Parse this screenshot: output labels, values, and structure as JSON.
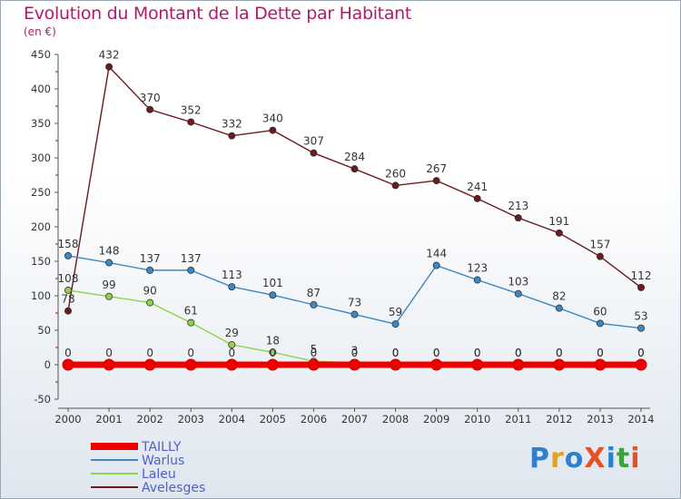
{
  "title": "Evolution du Montant de la Dette par Habitant",
  "subtitle": "(en €)",
  "logo": "ProXiti",
  "chart_data": {
    "type": "line",
    "title": "Evolution du Montant de la Dette par Habitant",
    "ylabel": "(en €)",
    "xlabel": "",
    "ylim": [
      -50,
      450
    ],
    "yticks": [
      -50,
      0,
      50,
      100,
      150,
      200,
      250,
      300,
      350,
      400,
      450
    ],
    "grid": false,
    "legend_position": "bottom-left",
    "x": [
      "2000",
      "2001",
      "2002",
      "2003",
      "2004",
      "2005",
      "2006",
      "2007",
      "2008",
      "2009",
      "2010",
      "2011",
      "2012",
      "2013",
      "2014"
    ],
    "series": [
      {
        "name": "TAILLY",
        "color": "#ee0000",
        "values": [
          0,
          0,
          0,
          0,
          0,
          0,
          0,
          0,
          0,
          0,
          0,
          0,
          0,
          0,
          0
        ]
      },
      {
        "name": "Warlus",
        "color": "#3d88c4",
        "values": [
          158,
          148,
          137,
          137,
          113,
          101,
          87,
          73,
          59,
          144,
          123,
          103,
          82,
          60,
          53
        ]
      },
      {
        "name": "Laleu",
        "color": "#8ed44a",
        "values": [
          108,
          99,
          90,
          61,
          29,
          18,
          5,
          3,
          0,
          0,
          0,
          0,
          0,
          0,
          0
        ]
      },
      {
        "name": "Avelesges",
        "color": "#6b1a1e",
        "values": [
          78,
          432,
          370,
          352,
          332,
          340,
          307,
          284,
          260,
          267,
          241,
          213,
          191,
          157,
          112
        ]
      }
    ],
    "data_labels": {
      "TAILLY": [
        "0",
        "0",
        "0",
        "0",
        "0",
        "0",
        "0",
        "0",
        "0",
        "0",
        "0",
        "0",
        "0",
        "0",
        "0"
      ],
      "Laleu": [
        "108",
        "99",
        "90",
        "61",
        "29",
        "18",
        "5",
        "3",
        "0",
        "0",
        "0",
        "0",
        "0",
        "0",
        "0"
      ],
      "Avelesges": [
        "78",
        "432",
        "370",
        "352",
        "332",
        "340",
        "307",
        "284",
        "260",
        "267",
        "241",
        "213",
        "191",
        "157",
        "112"
      ],
      "Warlus": [
        "158",
        "148",
        "137",
        "137",
        "113",
        "101",
        "87",
        "73",
        "59",
        "144",
        "123",
        "103",
        "82",
        "60",
        "53"
      ]
    }
  }
}
